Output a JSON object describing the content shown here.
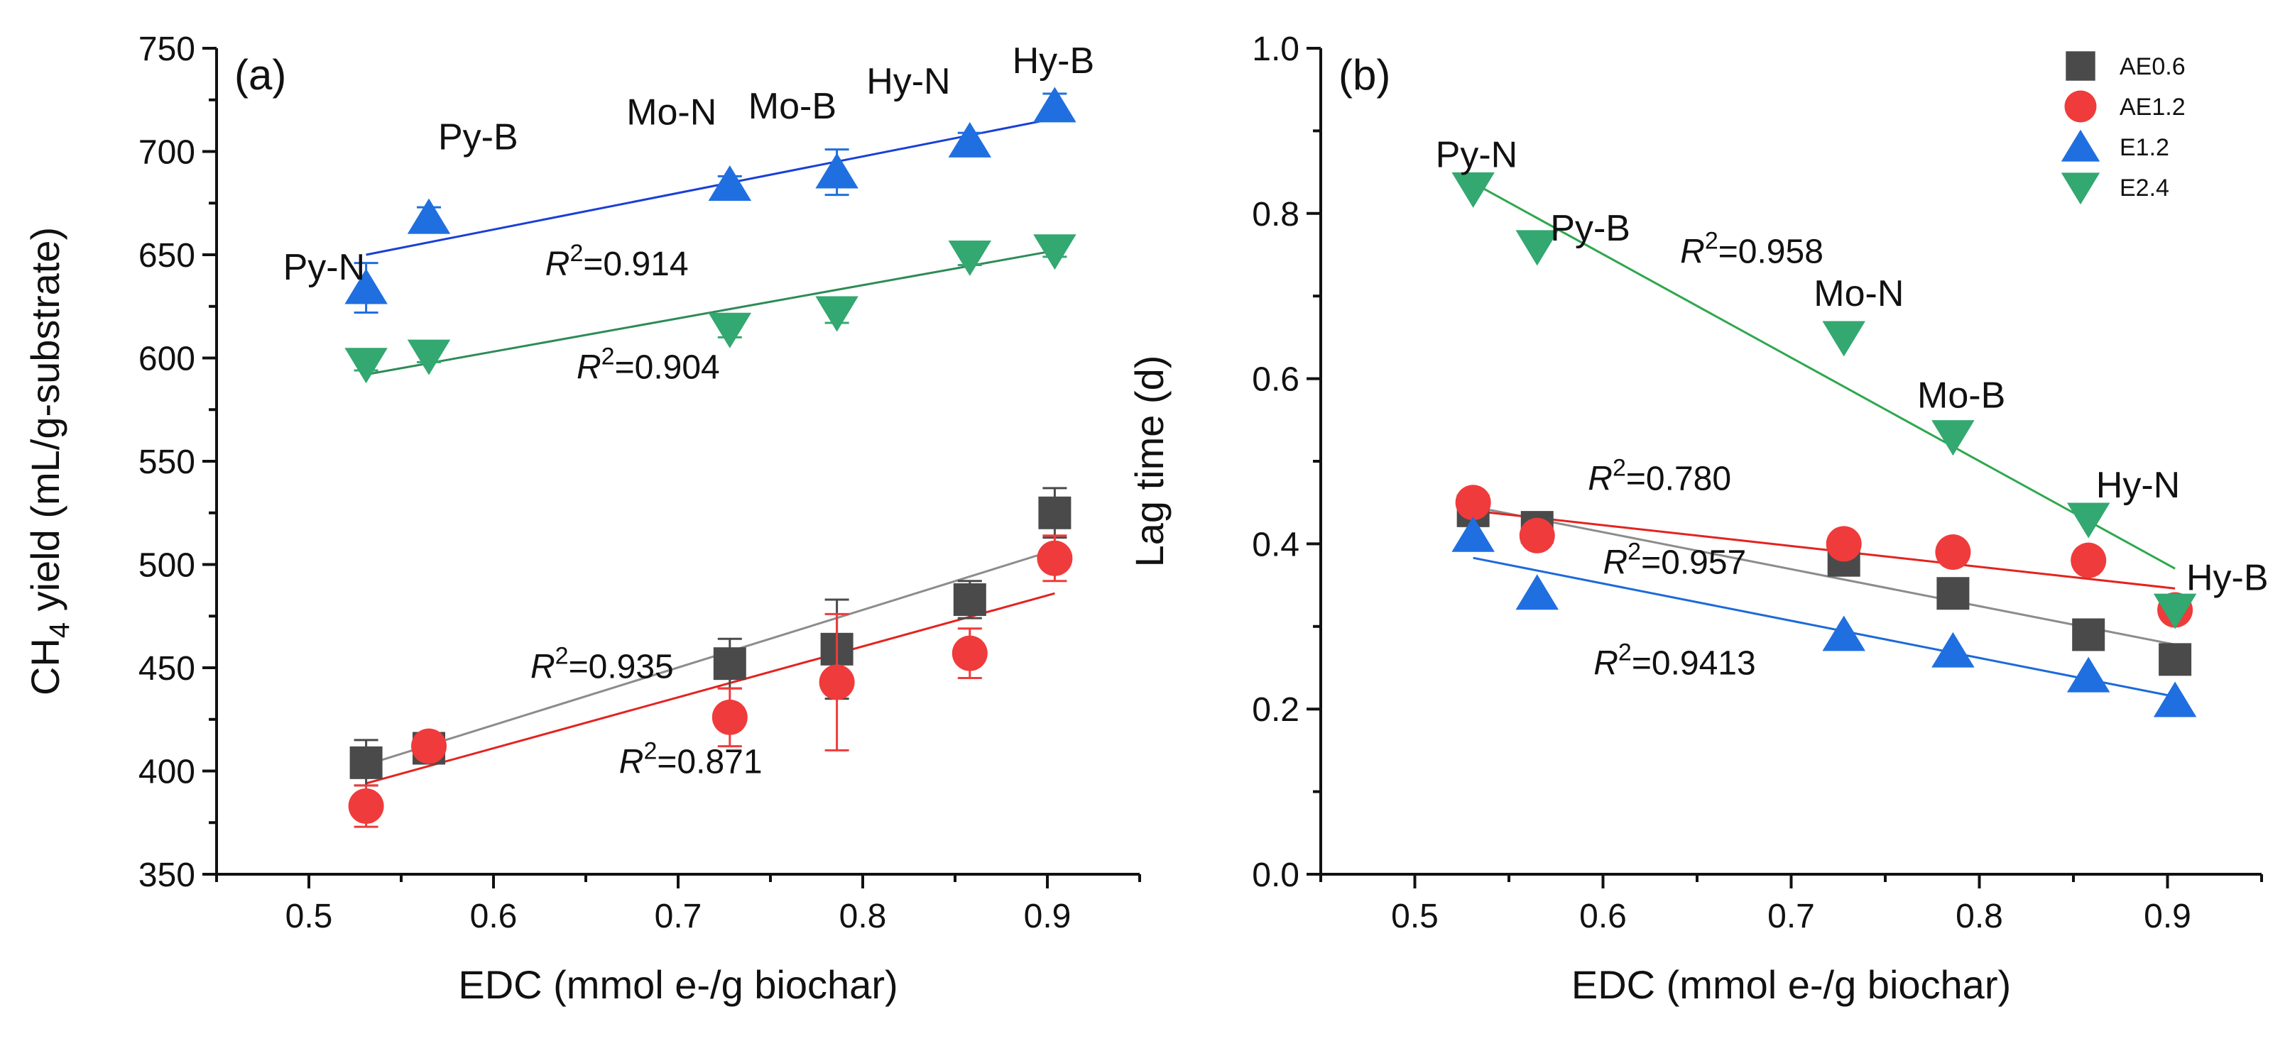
{
  "colors": {
    "AE0.6": "#4a4a4a",
    "AE1.2": "#ef3b3b",
    "E1.2": "#1f6fe0",
    "E2.4": "#33a870",
    "line_AE0.6": "#8c8c8c",
    "line_AE1.2": "#e3231f",
    "line_E1.2": "#1a3fd6",
    "line_E2.4": "#2e8b57",
    "line_b_E1.2": "#1c6ad8",
    "line_b_E2.4": "#2ea84d"
  },
  "chart_data": [
    {
      "id": "a",
      "type": "scatter",
      "panel_label": "(a)",
      "xlabel": "EDC (mmol e-/g biochar)",
      "ylabel": "CH4 yield (mL/g-substrate)",
      "ylabel_parts": {
        "pre": "CH",
        "sub": "4",
        "post": " yield (mL/g-substrate)"
      },
      "xlim": [
        0.45,
        0.95
      ],
      "ylim": [
        350,
        750
      ],
      "xticks": [
        0.5,
        0.6,
        0.7,
        0.8,
        0.9
      ],
      "xtick_labels": [
        "0.5",
        "0.6",
        "0.7",
        "0.8",
        "0.9"
      ],
      "yticks": [
        350,
        400,
        450,
        500,
        550,
        600,
        650,
        700,
        750
      ],
      "ytick_labels": [
        "350",
        "400",
        "450",
        "500",
        "550",
        "600",
        "650",
        "700",
        "750"
      ],
      "x": [
        0.531,
        0.565,
        0.728,
        0.786,
        0.858,
        0.904
      ],
      "series": [
        {
          "name": "AE0.6",
          "marker": "square",
          "values": [
            404,
            411,
            452,
            459,
            483,
            525
          ],
          "err": [
            11,
            6,
            12,
            24,
            9,
            12
          ],
          "fit": {
            "x": [
              0.531,
              0.904
            ],
            "y": [
              403,
              507
            ]
          },
          "r2_value": "0.935"
        },
        {
          "name": "AE1.2",
          "marker": "circle",
          "values": [
            383,
            412,
            426,
            443,
            457,
            503
          ],
          "err": [
            10,
            6,
            14,
            33,
            12,
            11
          ],
          "fit": {
            "x": [
              0.531,
              0.904
            ],
            "y": [
              394,
              486
            ]
          },
          "r2_value": "0.871"
        },
        {
          "name": "E1.2",
          "marker": "triangle-up",
          "values": [
            634,
            668,
            684,
            690,
            705,
            722
          ],
          "err": [
            12,
            5,
            4,
            11,
            4,
            6
          ],
          "fit": {
            "x": [
              0.531,
              0.904
            ],
            "y": [
              650,
              716
            ]
          },
          "r2_value": "0.914"
        },
        {
          "name": "E2.4",
          "marker": "triangle-down",
          "values": [
            597,
            601,
            614,
            622,
            649,
            652
          ],
          "err": [
            3,
            3,
            4,
            5,
            4,
            3
          ],
          "fit": {
            "x": [
              0.531,
              0.904
            ],
            "y": [
              592,
              652
            ]
          },
          "r2_value": "0.904"
        }
      ],
      "annotations": [
        {
          "text": "Py-N",
          "x": 0.486,
          "y": 638
        },
        {
          "text": "Py-B",
          "x": 0.57,
          "y": 701
        },
        {
          "text": "Mo-N",
          "x": 0.672,
          "y": 713
        },
        {
          "text": "Mo-B",
          "x": 0.738,
          "y": 716
        },
        {
          "text": "Hy-N",
          "x": 0.802,
          "y": 728
        },
        {
          "text": "Hy-B",
          "x": 0.881,
          "y": 738
        }
      ],
      "r2_labels": [
        {
          "series": "E1.2",
          "x": 0.628,
          "y": 640
        },
        {
          "series": "E2.4",
          "x": 0.645,
          "y": 590
        },
        {
          "series": "AE0.6",
          "x": 0.62,
          "y": 445
        },
        {
          "series": "AE1.2",
          "x": 0.668,
          "y": 399
        }
      ]
    },
    {
      "id": "b",
      "type": "scatter",
      "panel_label": "(b)",
      "xlabel": "EDC (mmol e-/g biochar)",
      "ylabel": "Lag time (d)",
      "xlim": [
        0.45,
        0.95
      ],
      "ylim": [
        0.0,
        1.0
      ],
      "xticks": [
        0.5,
        0.6,
        0.7,
        0.8,
        0.9
      ],
      "xtick_labels": [
        "0.5",
        "0.6",
        "0.7",
        "0.8",
        "0.9"
      ],
      "yticks": [
        0.0,
        0.2,
        0.4,
        0.6,
        0.8,
        1.0
      ],
      "ytick_labels": [
        "0.0",
        "0.2",
        "0.4",
        "0.6",
        "0.8",
        "1.0"
      ],
      "x": [
        0.531,
        0.565,
        0.728,
        0.786,
        0.858,
        0.904
      ],
      "series": [
        {
          "name": "AE0.6",
          "marker": "square",
          "values": [
            0.44,
            0.42,
            0.38,
            0.34,
            0.29,
            0.26
          ],
          "fit": {
            "x": [
              0.531,
              0.904
            ],
            "y": [
              0.445,
              0.278
            ]
          },
          "r2_value": "0.957"
        },
        {
          "name": "AE1.2",
          "marker": "circle",
          "values": [
            0.45,
            0.41,
            0.4,
            0.39,
            0.38,
            0.32
          ],
          "fit": {
            "x": [
              0.531,
              0.904
            ],
            "y": [
              0.44,
              0.346
            ]
          },
          "r2_value": "0.780"
        },
        {
          "name": "E1.2",
          "marker": "triangle-up",
          "values": [
            0.41,
            0.34,
            0.29,
            0.27,
            0.24,
            0.21
          ],
          "fit": {
            "x": [
              0.531,
              0.904
            ],
            "y": [
              0.383,
              0.215
            ]
          },
          "r2_value": "0.9413"
        },
        {
          "name": "E2.4",
          "marker": "triangle-down",
          "values": [
            0.83,
            0.76,
            0.65,
            0.53,
            0.43,
            0.32
          ],
          "fit": {
            "x": [
              0.531,
              0.904
            ],
            "y": [
              0.837,
              0.37
            ]
          },
          "r2_value": "0.958"
        }
      ],
      "annotations": [
        {
          "text": "Py-N",
          "x": 0.511,
          "y": 0.856
        },
        {
          "text": "Py-B",
          "x": 0.572,
          "y": 0.767
        },
        {
          "text": "Mo-N",
          "x": 0.712,
          "y": 0.688
        },
        {
          "text": "Mo-B",
          "x": 0.767,
          "y": 0.565
        },
        {
          "text": "Hy-N",
          "x": 0.862,
          "y": 0.456
        },
        {
          "text": "Hy-B",
          "x": 0.91,
          "y": 0.344
        }
      ],
      "r2_labels": [
        {
          "series": "E2.4",
          "x": 0.641,
          "y": 0.74
        },
        {
          "series": "AE1.2",
          "x": 0.592,
          "y": 0.465
        },
        {
          "series": "AE0.6",
          "x": 0.6,
          "y": 0.364
        },
        {
          "series": "E1.2",
          "x": 0.595,
          "y": 0.242
        }
      ],
      "legend": {
        "position": "top-right",
        "entries": [
          {
            "name": "AE0.6",
            "marker": "square"
          },
          {
            "name": "AE1.2",
            "marker": "circle"
          },
          {
            "name": "E1.2",
            "marker": "triangle-up"
          },
          {
            "name": "E2.4",
            "marker": "triangle-down"
          }
        ]
      }
    }
  ]
}
